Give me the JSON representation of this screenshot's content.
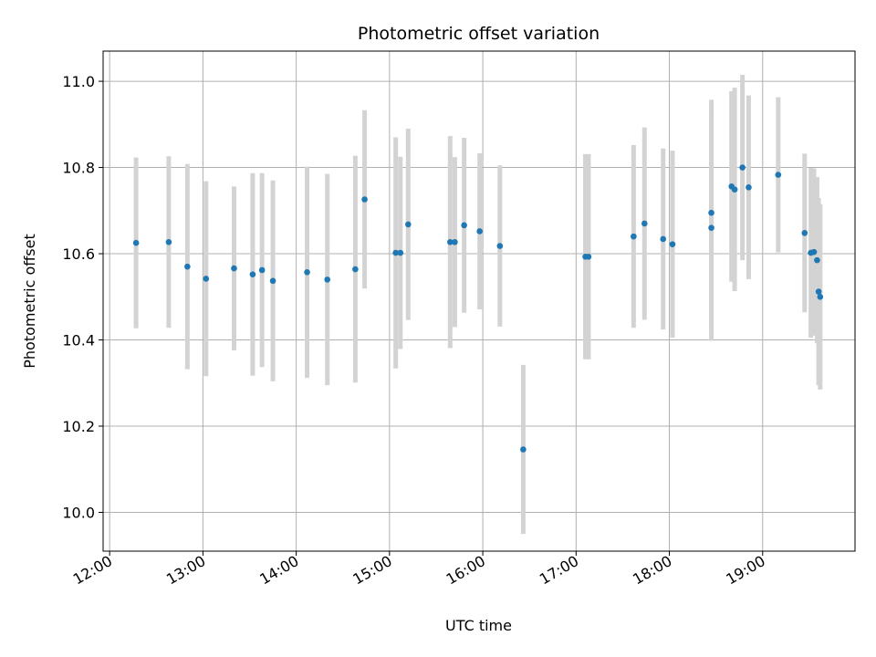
{
  "chart_data": {
    "type": "scatter",
    "title": "Photometric offset variation",
    "xlabel": "UTC time",
    "ylabel": "Photometric offset",
    "x_ticks": [
      "12:00",
      "13:00",
      "14:00",
      "15:00",
      "16:00",
      "17:00",
      "18:00",
      "19:00"
    ],
    "x_tick_hours": [
      12,
      13,
      14,
      15,
      16,
      17,
      18,
      19
    ],
    "y_ticks": [
      "10.0",
      "10.2",
      "10.4",
      "10.6",
      "10.8",
      "11.0"
    ],
    "y_tick_values": [
      10.0,
      10.2,
      10.4,
      10.6,
      10.8,
      11.0
    ],
    "xlim": [
      11.93,
      19.99
    ],
    "ylim": [
      9.91,
      11.07
    ],
    "grid": true,
    "colors": {
      "point": "#1f77b4",
      "errorbar": "#d3d3d3",
      "grid": "#b0b0b0"
    },
    "series": [
      {
        "x": [
          "12:17",
          "12:38",
          "12:50",
          "13:02",
          "13:20",
          "13:32",
          "13:38",
          "13:45",
          "14:07",
          "14:20",
          "14:38",
          "14:44",
          "15:04",
          "15:07",
          "15:12",
          "15:39",
          "15:42",
          "15:48",
          "15:58",
          "16:11",
          "16:26",
          "17:06",
          "17:08",
          "17:37",
          "17:44",
          "17:56",
          "18:02",
          "18:27",
          "18:27",
          "18:40",
          "18:42",
          "18:47",
          "18:51",
          "19:10",
          "19:27",
          "19:31",
          "19:33",
          "19:35",
          "19:36",
          "19:37"
        ],
        "y": [
          10.625,
          10.627,
          10.57,
          10.542,
          10.566,
          10.552,
          10.562,
          10.537,
          10.557,
          10.54,
          10.564,
          10.726,
          10.602,
          10.602,
          10.668,
          10.627,
          10.627,
          10.666,
          10.652,
          10.618,
          10.146,
          10.593,
          10.593,
          10.64,
          10.67,
          10.634,
          10.622,
          10.695,
          10.66,
          10.756,
          10.749,
          10.8,
          10.754,
          10.783,
          10.648,
          10.602,
          10.604,
          10.585,
          10.512,
          10.5
        ],
        "yerr": [
          0.198,
          0.199,
          0.238,
          0.226,
          0.19,
          0.235,
          0.225,
          0.233,
          0.245,
          0.245,
          0.263,
          0.207,
          0.268,
          0.223,
          0.222,
          0.246,
          0.197,
          0.203,
          0.181,
          0.187,
          0.196,
          0.238,
          0.238,
          0.212,
          0.223,
          0.21,
          0.217,
          0.262,
          0.262,
          0.221,
          0.236,
          0.215,
          0.213,
          0.18,
          0.184,
          0.197,
          0.194,
          0.193,
          0.217,
          0.215
        ]
      }
    ]
  }
}
